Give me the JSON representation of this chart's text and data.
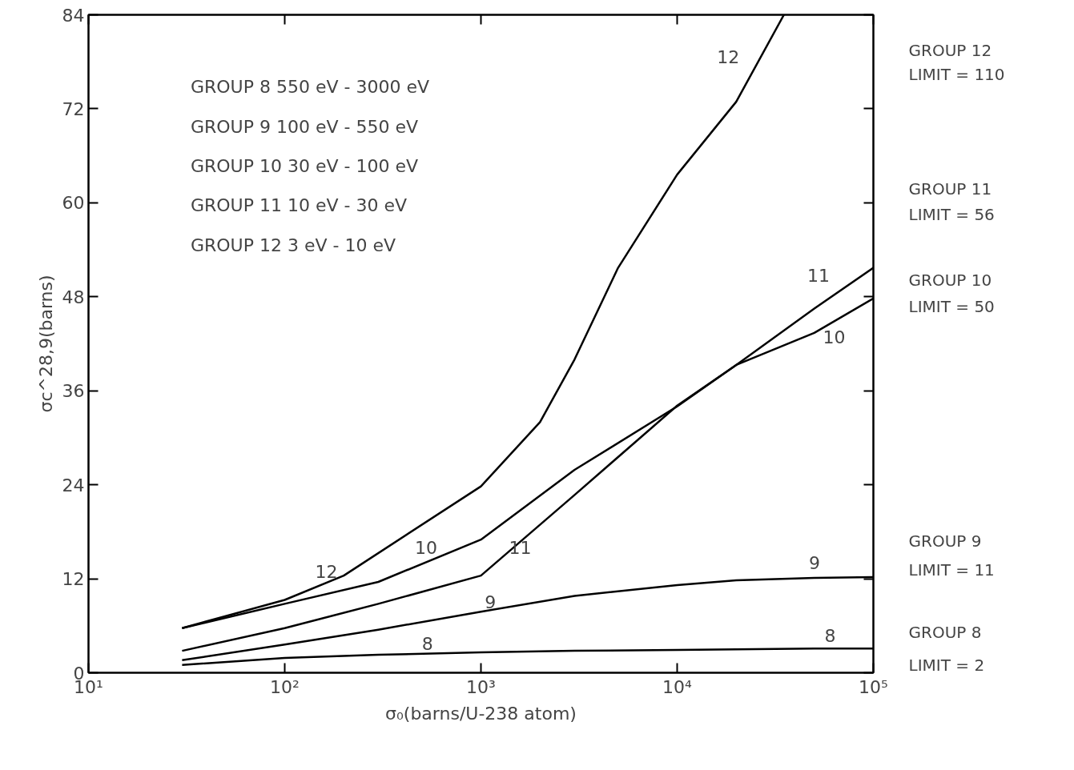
{
  "chart_data": {
    "type": "line",
    "xlabel": "σ₀(barns/U-238 atom)",
    "ylabel": "σc^28,9(barns)",
    "log": "x",
    "grid": false,
    "line_style": "solid",
    "marker": "none",
    "xlim": [
      10,
      100000
    ],
    "xticks": [
      {
        "value": 10,
        "label": "10¹"
      },
      {
        "value": 100,
        "label": "10²"
      },
      {
        "value": 1000,
        "label": "10³"
      },
      {
        "value": 10000,
        "label": "10⁴"
      },
      {
        "value": 100000,
        "label": "10⁵"
      }
    ],
    "ylim": [
      0,
      84
    ],
    "yticks": [
      0,
      12,
      24,
      36,
      48,
      60,
      72,
      84
    ],
    "x": [
      30,
      100,
      300,
      1000,
      3000,
      10000,
      20000,
      50000,
      100000
    ],
    "series": [
      {
        "color": "#000000",
        "values": [
          1.0,
          1.9,
          2.3,
          2.6,
          2.8,
          2.9,
          3.0,
          3.1,
          3.1
        ]
      },
      {
        "color": "#000000",
        "values": [
          1.6,
          3.6,
          5.5,
          7.8,
          9.8,
          11.2,
          11.8,
          12.1,
          12.2
        ]
      },
      {
        "color": "#000000",
        "values": [
          5.7,
          8.8,
          11.6,
          17.0,
          25.9,
          34.0,
          39.3,
          43.4,
          47.8
        ]
      },
      {
        "color": "#000000",
        "values": [
          2.8,
          5.7,
          8.8,
          12.4,
          22.7,
          34.1,
          39.3,
          46.5,
          51.7
        ]
      },
      {
        "color": "#000000",
        "x": [
          30,
          100,
          200,
          1000,
          2000,
          3000,
          5000,
          10000,
          20000,
          35000
        ],
        "values": [
          5.7,
          9.3,
          12.4,
          23.8,
          32.0,
          40.0,
          51.7,
          63.6,
          72.9,
          84.0
        ]
      }
    ],
    "annotations": [
      "GROUP 8   550 eV - 3000 eV",
      "GROUP 9   100 eV -   550 eV",
      "GROUP 10   30 eV -   100 eV",
      "GROUP 11   10 eV -     30 eV",
      "GROUP 12    3 eV -     10 eV",
      "8",
      "9",
      "10",
      "11",
      "12",
      "8",
      "9",
      "10",
      "11",
      "12",
      "GROUP 12",
      "LIMIT = 110",
      "GROUP 11",
      "LIMIT = 56",
      "GROUP 10",
      "LIMIT = 50",
      "GROUP 9",
      "LIMIT = 11",
      "GROUP 8",
      "LIMIT = 2"
    ]
  }
}
